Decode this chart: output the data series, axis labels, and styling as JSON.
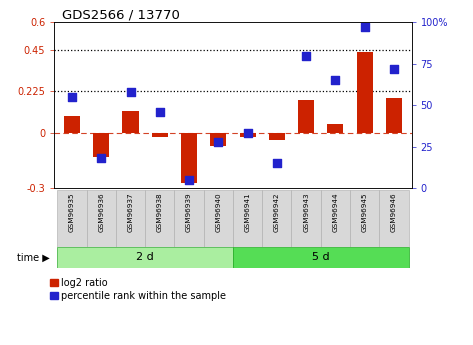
{
  "title": "GDS2566 / 13770",
  "samples": [
    "GSM96935",
    "GSM96936",
    "GSM96937",
    "GSM96938",
    "GSM96939",
    "GSM96940",
    "GSM96941",
    "GSM96942",
    "GSM96943",
    "GSM96944",
    "GSM96945",
    "GSM96946"
  ],
  "log2_ratio": [
    0.09,
    -0.13,
    0.12,
    -0.02,
    -0.27,
    -0.07,
    -0.02,
    -0.04,
    0.18,
    0.05,
    0.44,
    0.19
  ],
  "percentile_rank": [
    55,
    18,
    58,
    46,
    5,
    28,
    33,
    15,
    80,
    65,
    97,
    72
  ],
  "left_ylim": [
    -0.3,
    0.6
  ],
  "right_ylim": [
    0,
    100
  ],
  "left_yticks": [
    -0.3,
    0,
    0.225,
    0.45,
    0.6
  ],
  "left_ytick_labels": [
    "-0.3",
    "0",
    "0.225",
    "0.45",
    "0.6"
  ],
  "right_yticks": [
    0,
    25,
    50,
    75,
    100
  ],
  "right_ytick_labels": [
    "0",
    "25",
    "50",
    "75",
    "100%"
  ],
  "hlines": [
    0.225,
    0.45
  ],
  "bar_color": "#cc2200",
  "dot_color": "#2222cc",
  "group1_label": "2 d",
  "group2_label": "5 d",
  "group1_indices": [
    0,
    1,
    2,
    3,
    4,
    5
  ],
  "group2_indices": [
    6,
    7,
    8,
    9,
    10,
    11
  ],
  "group1_color": "#aaeea0",
  "group2_color": "#55dd55",
  "legend_log2": "log2 ratio",
  "legend_pct": "percentile rank within the sample",
  "time_label": "time",
  "bar_width": 0.55,
  "dot_size": 28,
  "label_box_color": "#d8d8d8",
  "label_box_edge": "#aaaaaa"
}
